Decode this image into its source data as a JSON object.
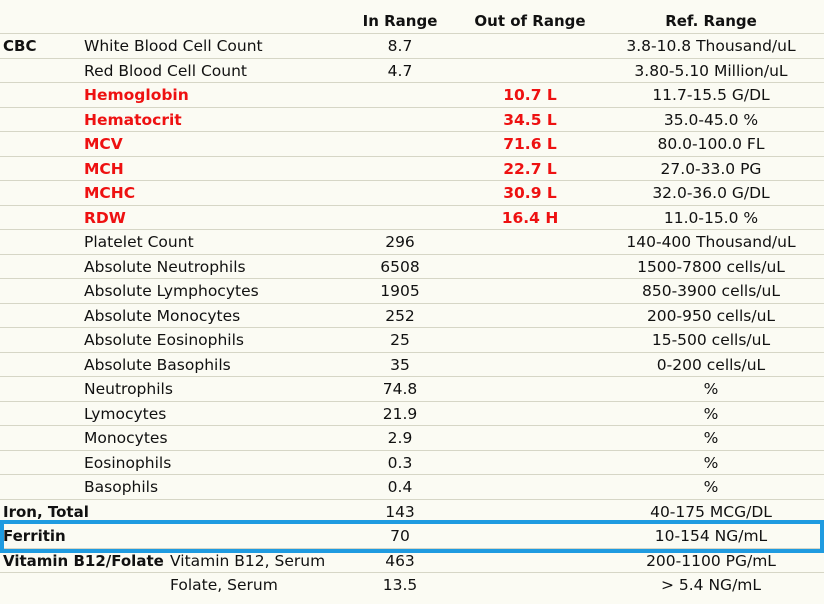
{
  "columns": {
    "in_range": "In Range",
    "out_of_range": "Out of Range",
    "ref_range": "Ref. Range"
  },
  "rows": [
    {
      "group": "CBC",
      "name": "White Blood Cell Count",
      "in": "8.7",
      "out": "",
      "ref": "3.8-10.8  Thousand/uL",
      "flag": false
    },
    {
      "group": "",
      "name": "Red Blood Cell Count",
      "in": "4.7",
      "out": "",
      "ref": "3.80-5.10  Million/uL",
      "flag": false
    },
    {
      "group": "",
      "name": "Hemoglobin",
      "in": "",
      "out": "10.7 L",
      "ref": "11.7-15.5  G/DL",
      "flag": true
    },
    {
      "group": "",
      "name": "Hematocrit",
      "in": "",
      "out": "34.5 L",
      "ref": "35.0-45.0  %",
      "flag": true
    },
    {
      "group": "",
      "name": "MCV",
      "in": "",
      "out": "71.6 L",
      "ref": "80.0-100.0  FL",
      "flag": true
    },
    {
      "group": "",
      "name": "MCH",
      "in": "",
      "out": "22.7 L",
      "ref": "27.0-33.0  PG",
      "flag": true
    },
    {
      "group": "",
      "name": "MCHC",
      "in": "",
      "out": "30.9 L",
      "ref": "32.0-36.0  G/DL",
      "flag": true
    },
    {
      "group": "",
      "name": "RDW",
      "in": "",
      "out": "16.4 H",
      "ref": "11.0-15.0  %",
      "flag": true
    },
    {
      "group": "",
      "name": "Platelet Count",
      "in": "296",
      "out": "",
      "ref": "140-400  Thousand/uL",
      "flag": false
    },
    {
      "group": "",
      "name": "Absolute Neutrophils",
      "in": "6508",
      "out": "",
      "ref": "1500-7800  cells/uL",
      "flag": false
    },
    {
      "group": "",
      "name": "Absolute Lymphocytes",
      "in": "1905",
      "out": "",
      "ref": "850-3900  cells/uL",
      "flag": false
    },
    {
      "group": "",
      "name": "Absolute Monocytes",
      "in": "252",
      "out": "",
      "ref": "200-950  cells/uL",
      "flag": false
    },
    {
      "group": "",
      "name": "Absolute Eosinophils",
      "in": "25",
      "out": "",
      "ref": "15-500  cells/uL",
      "flag": false
    },
    {
      "group": "",
      "name": "Absolute Basophils",
      "in": "35",
      "out": "",
      "ref": "0-200  cells/uL",
      "flag": false
    },
    {
      "group": "",
      "name": "Neutrophils",
      "in": "74.8",
      "out": "",
      "ref": "%",
      "flag": false
    },
    {
      "group": "",
      "name": "Lymocytes",
      "in": "21.9",
      "out": "",
      "ref": "%",
      "flag": false
    },
    {
      "group": "",
      "name": "Monocytes",
      "in": "2.9",
      "out": "",
      "ref": "%",
      "flag": false
    },
    {
      "group": "",
      "name": "Eosinophils",
      "in": "0.3",
      "out": "",
      "ref": "%",
      "flag": false
    },
    {
      "group": "",
      "name": "Basophils",
      "in": "0.4",
      "out": "",
      "ref": "%",
      "flag": false
    },
    {
      "group": "Iron, Total",
      "name": "",
      "in": "143",
      "out": "",
      "ref": "40-175  MCG/DL",
      "flag": false
    },
    {
      "group": "Ferritin",
      "name": "",
      "in": "70",
      "out": "",
      "ref": "10-154  NG/mL",
      "flag": false
    },
    {
      "group": "Vitamin  B12/Folate",
      "name": "Vitamin B12, Serum",
      "in": "463",
      "out": "",
      "ref": "200-1100  PG/mL",
      "flag": false,
      "sub": true
    },
    {
      "group": "",
      "name": "Folate, Serum",
      "in": "13.5",
      "out": "",
      "ref": "> 5.4  NG/mL",
      "flag": false,
      "sub": true
    }
  ]
}
